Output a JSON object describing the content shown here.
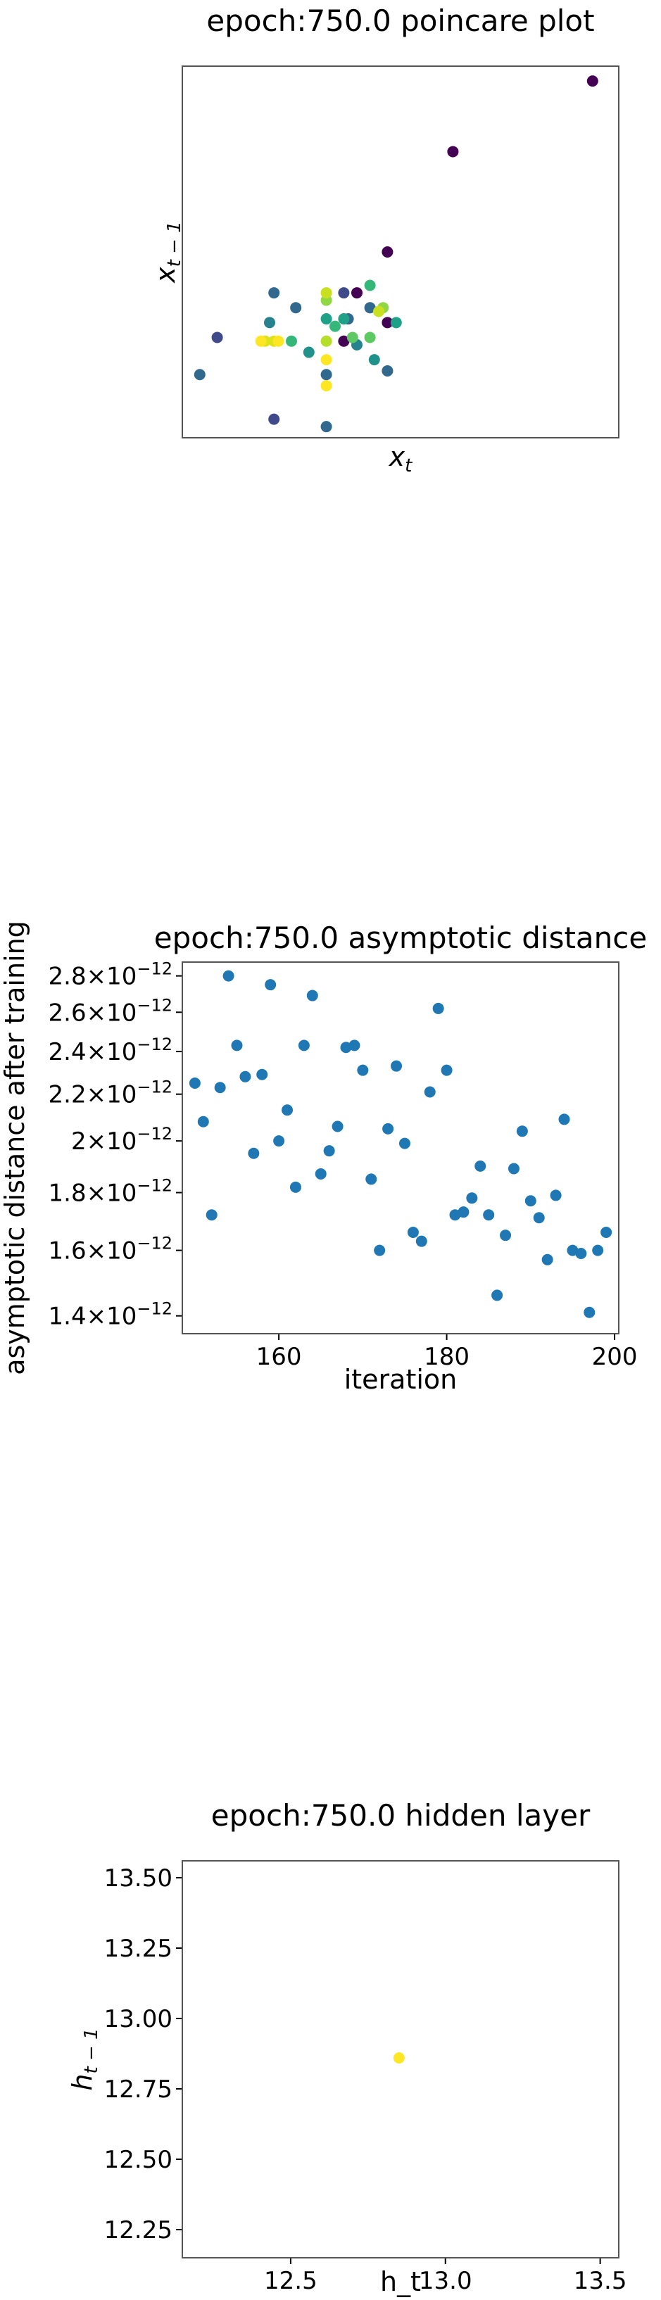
{
  "chart_data": [
    {
      "type": "scatter",
      "title": "epoch:750.0 poincare plot",
      "xlabel_base": "x",
      "xlabel_sub": "t",
      "ylabel_base": "x",
      "ylabel_sub": "t − 1",
      "xticks": [],
      "yticks": [],
      "xlim": [
        0,
        100
      ],
      "ylim": [
        0,
        100
      ],
      "colormap": "viridis",
      "points": [
        {
          "x": 94,
          "y": 96,
          "color": "#440154"
        },
        {
          "x": 62,
          "y": 77,
          "color": "#440154"
        },
        {
          "x": 47,
          "y": 50,
          "color": "#440154"
        },
        {
          "x": 40,
          "y": 39,
          "color": "#440154"
        },
        {
          "x": 37,
          "y": 39,
          "color": "#3e4a89"
        },
        {
          "x": 8,
          "y": 27,
          "color": "#3e4a89"
        },
        {
          "x": 21,
          "y": 5,
          "color": "#3e4a89"
        },
        {
          "x": 4,
          "y": 17,
          "color": "#31688e"
        },
        {
          "x": 33,
          "y": 3,
          "color": "#31688e"
        },
        {
          "x": 47,
          "y": 18,
          "color": "#31688e"
        },
        {
          "x": 21,
          "y": 39,
          "color": "#31688e"
        },
        {
          "x": 26,
          "y": 35,
          "color": "#31688e"
        },
        {
          "x": 33,
          "y": 17,
          "color": "#31688e"
        },
        {
          "x": 38,
          "y": 32,
          "color": "#31688e"
        },
        {
          "x": 43,
          "y": 35,
          "color": "#31688e"
        },
        {
          "x": 37,
          "y": 26,
          "color": "#440154"
        },
        {
          "x": 47,
          "y": 31,
          "color": "#440154"
        },
        {
          "x": 20,
          "y": 31,
          "color": "#26828e"
        },
        {
          "x": 40,
          "y": 25,
          "color": "#26828e"
        },
        {
          "x": 44,
          "y": 21,
          "color": "#21918c"
        },
        {
          "x": 33,
          "y": 32,
          "color": "#1fa187"
        },
        {
          "x": 37,
          "y": 32,
          "color": "#1fa187"
        },
        {
          "x": 49,
          "y": 31,
          "color": "#1fa187"
        },
        {
          "x": 43,
          "y": 41,
          "color": "#35b779"
        },
        {
          "x": 35,
          "y": 30,
          "color": "#35b779"
        },
        {
          "x": 25,
          "y": 26,
          "color": "#35b779"
        },
        {
          "x": 43,
          "y": 27,
          "color": "#5ec962"
        },
        {
          "x": 39,
          "y": 27,
          "color": "#5ec962"
        },
        {
          "x": 33,
          "y": 37,
          "color": "#90d743"
        },
        {
          "x": 46,
          "y": 35,
          "color": "#90d743"
        },
        {
          "x": 33,
          "y": 26,
          "color": "#b5de2b"
        },
        {
          "x": 33,
          "y": 39,
          "color": "#c8e020"
        },
        {
          "x": 45,
          "y": 34,
          "color": "#c8e020"
        },
        {
          "x": 19,
          "y": 26,
          "color": "#dde318"
        },
        {
          "x": 21,
          "y": 26,
          "color": "#dde318"
        },
        {
          "x": 22,
          "y": 26,
          "color": "#fde725"
        },
        {
          "x": 18,
          "y": 26,
          "color": "#fde725"
        },
        {
          "x": 33,
          "y": 14,
          "color": "#fde725"
        },
        {
          "x": 33,
          "y": 21,
          "color": "#fde725"
        },
        {
          "x": 29,
          "y": 23,
          "color": "#21918c"
        }
      ]
    },
    {
      "type": "scatter",
      "title": "epoch:750.0 asymptotic distance",
      "xlabel": "iteration",
      "ylabel": "asymptotic distance after training",
      "xlim": [
        148.5,
        200.5
      ],
      "ylim": [
        1.35e-12,
        2.88e-12
      ],
      "yscale": "log",
      "xticks": [
        160,
        180,
        200
      ],
      "yticks": [
        {
          "value": 1.4e-12,
          "mantissa": "1.4",
          "base": "10",
          "exponent": "−12"
        },
        {
          "value": 1.6e-12,
          "mantissa": "1.6",
          "base": "10",
          "exponent": "−12"
        },
        {
          "value": 1.8e-12,
          "mantissa": "1.8",
          "base": "10",
          "exponent": "−12"
        },
        {
          "value": 2e-12,
          "mantissa": "2",
          "base": "10",
          "exponent": "−12"
        },
        {
          "value": 2.2e-12,
          "mantissa": "2.2",
          "base": "10",
          "exponent": "−12"
        },
        {
          "value": 2.4e-12,
          "mantissa": "2.4",
          "base": "10",
          "exponent": "−12"
        },
        {
          "value": 2.6e-12,
          "mantissa": "2.6",
          "base": "10",
          "exponent": "−12"
        },
        {
          "value": 2.8e-12,
          "mantissa": "2.8",
          "base": "10",
          "exponent": "−12"
        }
      ],
      "times_sign": "×",
      "color": "#1f77b4",
      "x": [
        150,
        151,
        152,
        153,
        154,
        155,
        156,
        157,
        158,
        159,
        160,
        161,
        162,
        163,
        164,
        165,
        166,
        167,
        168,
        169,
        170,
        171,
        172,
        173,
        174,
        175,
        176,
        177,
        178,
        179,
        180,
        181,
        182,
        183,
        184,
        185,
        186,
        187,
        188,
        189,
        190,
        191,
        192,
        193,
        194,
        195,
        196,
        197,
        198,
        199
      ],
      "y": [
        2.25e-12,
        2.08e-12,
        1.72e-12,
        2.23e-12,
        2.8e-12,
        2.43e-12,
        2.28e-12,
        1.95e-12,
        2.29e-12,
        2.75e-12,
        2e-12,
        2.13e-12,
        1.82e-12,
        2.43e-12,
        2.69e-12,
        1.87e-12,
        1.96e-12,
        2.06e-12,
        2.42e-12,
        2.43e-12,
        2.31e-12,
        1.85e-12,
        1.6e-12,
        2.05e-12,
        2.33e-12,
        1.99e-12,
        1.66e-12,
        1.63e-12,
        2.21e-12,
        2.62e-12,
        2.31e-12,
        1.72e-12,
        1.73e-12,
        1.78e-12,
        1.9e-12,
        1.72e-12,
        1.46e-12,
        1.65e-12,
        1.89e-12,
        2.04e-12,
        1.77e-12,
        1.71e-12,
        1.57e-12,
        1.79e-12,
        2.09e-12,
        1.6e-12,
        1.59e-12,
        1.41e-12,
        1.6e-12,
        1.66e-12
      ]
    },
    {
      "type": "scatter",
      "title": "epoch:750.0 hidden layer",
      "xlabel": "h_t",
      "ylabel_base": "h",
      "ylabel_sub": "t − 1",
      "xlim": [
        12.15,
        13.56
      ],
      "ylim": [
        12.15,
        13.56
      ],
      "xticks": [
        "12.5",
        "13.0",
        "13.5"
      ],
      "yticks": [
        "12.25",
        "12.50",
        "12.75",
        "13.00",
        "13.25",
        "13.50"
      ],
      "color": "#fde725",
      "x": [
        12.85
      ],
      "y": [
        12.86
      ]
    }
  ]
}
